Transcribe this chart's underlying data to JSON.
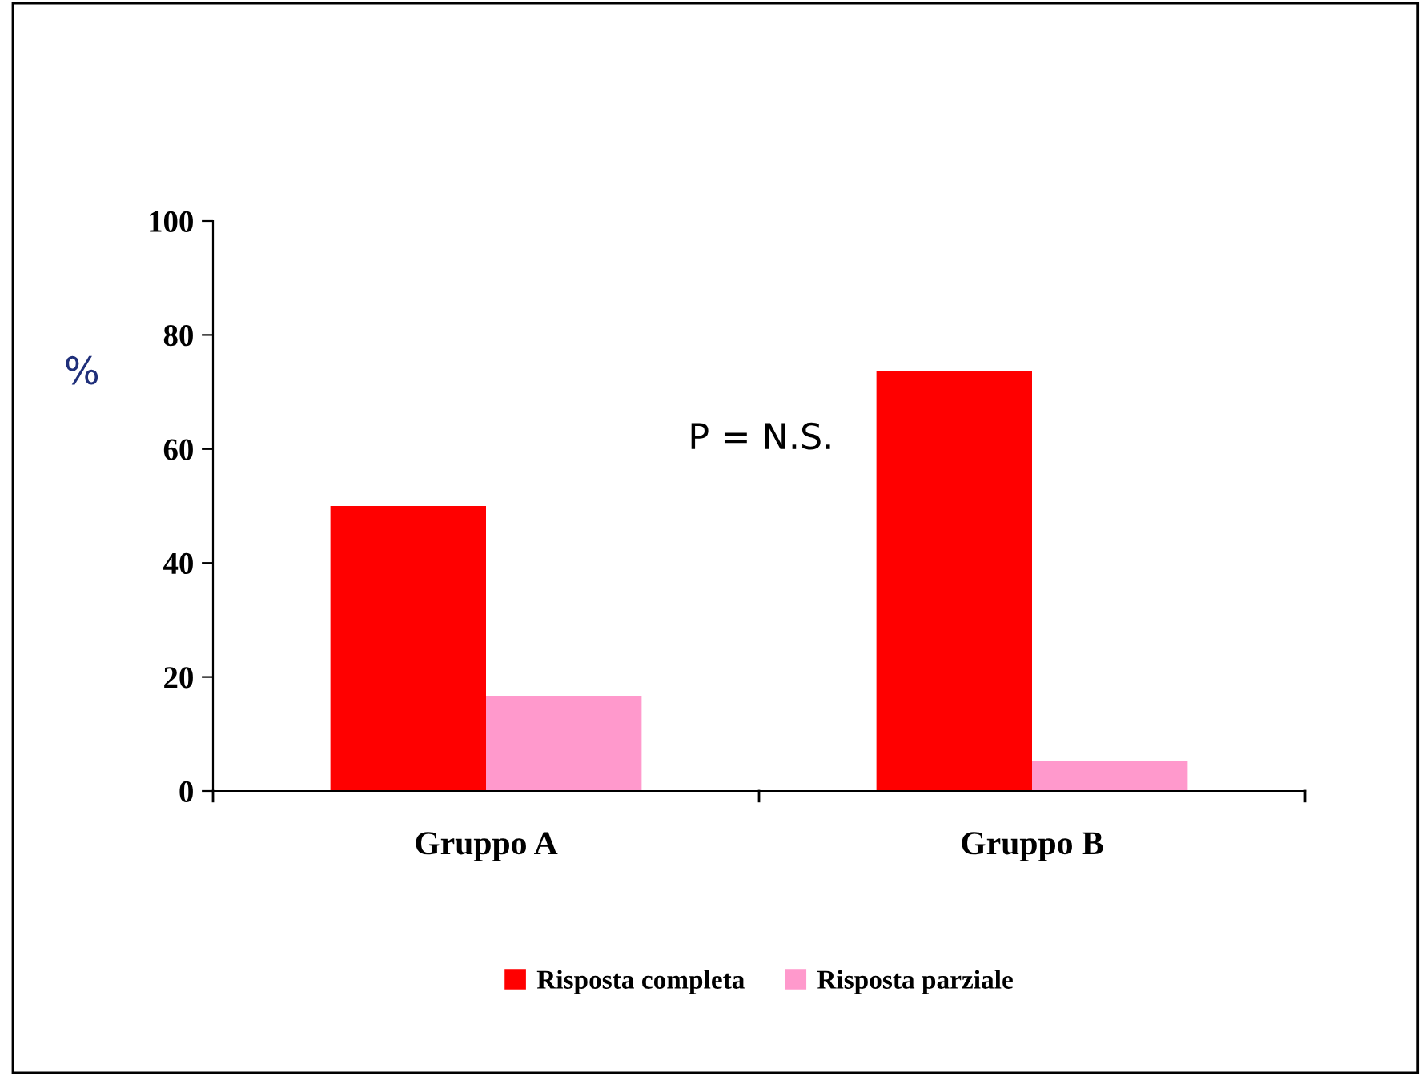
{
  "chart_data": {
    "type": "bar",
    "ylabel": "%",
    "categories": [
      "Gruppo A",
      "Gruppo B"
    ],
    "series": [
      {
        "name": "Risposta completa",
        "color": "#ff0000",
        "values": [
          50,
          73.7
        ]
      },
      {
        "name": "Risposta parziale",
        "color": "#ff99cc",
        "values": [
          16.7,
          5.3
        ]
      }
    ],
    "ylim": [
      0,
      100
    ],
    "yticks": [
      0,
      20,
      40,
      60,
      80,
      100
    ],
    "grid": false,
    "legend": "bottom",
    "annotations": [
      "P = N.S."
    ]
  }
}
